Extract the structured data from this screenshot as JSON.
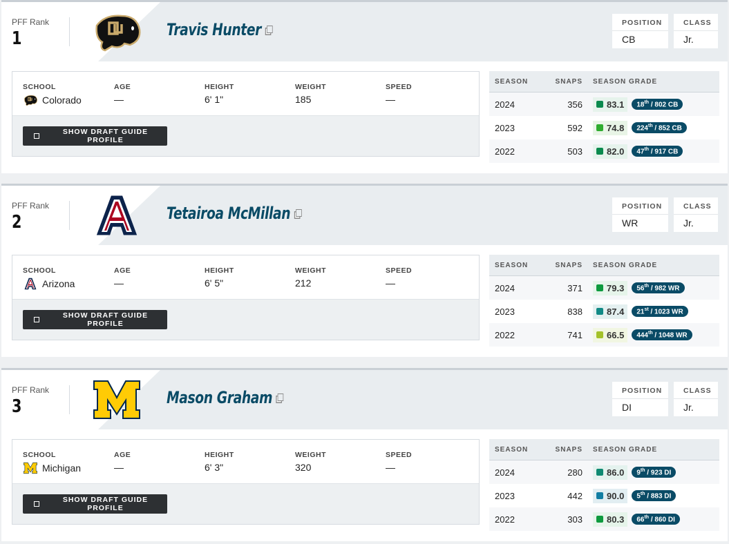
{
  "labels": {
    "rank": "PFF Rank",
    "position": "POSITION",
    "class": "CLASS",
    "school": "SCHOOL",
    "age": "AGE",
    "height": "HEIGHT",
    "weight": "WEIGHT",
    "speed": "SPEED",
    "button": "SHOW DRAFT GUIDE PROFILE",
    "season": "SEASON",
    "snaps": "SNAPS",
    "grade": "SEASON GRADE"
  },
  "colors": {
    "name": "#0a4b66",
    "rank_badge": "#0a4b66",
    "button": "#2d3033"
  },
  "players": [
    {
      "rank": "1",
      "name": "Travis Hunter",
      "logo": "colorado-buffalo",
      "position": "CB",
      "class": "Jr.",
      "school": "Colorado",
      "age": "—",
      "height": "6' 1\"",
      "weight": "185",
      "speed": "—",
      "seasons": [
        {
          "season": "2024",
          "snaps": "356",
          "grade": "83.1",
          "color": "#0b8a4e",
          "bg": "#e6f3ec",
          "rank": "18",
          "suffix": "th",
          "of": " / 802 CB"
        },
        {
          "season": "2023",
          "snaps": "592",
          "grade": "74.8",
          "color": "#2fac2f",
          "bg": "#e8f4e6",
          "rank": "224",
          "suffix": "th",
          "of": " / 852 CB"
        },
        {
          "season": "2022",
          "snaps": "503",
          "grade": "82.0",
          "color": "#0b8a4e",
          "bg": "#e6f3ec",
          "rank": "47",
          "suffix": "th",
          "of": " / 917 CB"
        }
      ]
    },
    {
      "rank": "2",
      "name": "Tetairoa McMillan",
      "logo": "arizona-a",
      "position": "WR",
      "class": "Jr.",
      "school": "Arizona",
      "age": "—",
      "height": "6' 5\"",
      "weight": "212",
      "speed": "—",
      "seasons": [
        {
          "season": "2024",
          "snaps": "371",
          "grade": "79.3",
          "color": "#0e9a3e",
          "bg": "#e6f4ea",
          "rank": "56",
          "suffix": "th",
          "of": " / 982 WR"
        },
        {
          "season": "2023",
          "snaps": "838",
          "grade": "87.4",
          "color": "#128a86",
          "bg": "#e4f0f0",
          "rank": "21",
          "suffix": "st",
          "of": " / 1023 WR"
        },
        {
          "season": "2022",
          "snaps": "741",
          "grade": "66.5",
          "color": "#a3c12a",
          "bg": "#f1f6e2",
          "rank": "444",
          "suffix": "th",
          "of": " / 1048 WR"
        }
      ]
    },
    {
      "rank": "3",
      "name": "Mason Graham",
      "logo": "michigan-m",
      "position": "DI",
      "class": "Jr.",
      "school": "Michigan",
      "age": "—",
      "height": "6' 3\"",
      "weight": "320",
      "speed": "—",
      "seasons": [
        {
          "season": "2024",
          "snaps": "280",
          "grade": "86.0",
          "color": "#0f8a72",
          "bg": "#e4f2ee",
          "rank": "9",
          "suffix": "th",
          "of": " / 923 DI"
        },
        {
          "season": "2023",
          "snaps": "442",
          "grade": "90.0",
          "color": "#137ea3",
          "bg": "#e2eef2",
          "rank": "5",
          "suffix": "th",
          "of": " / 883 DI"
        },
        {
          "season": "2022",
          "snaps": "303",
          "grade": "80.3",
          "color": "#0e9a3e",
          "bg": "#e6f4ea",
          "rank": "66",
          "suffix": "th",
          "of": " / 860 DI"
        }
      ]
    }
  ]
}
